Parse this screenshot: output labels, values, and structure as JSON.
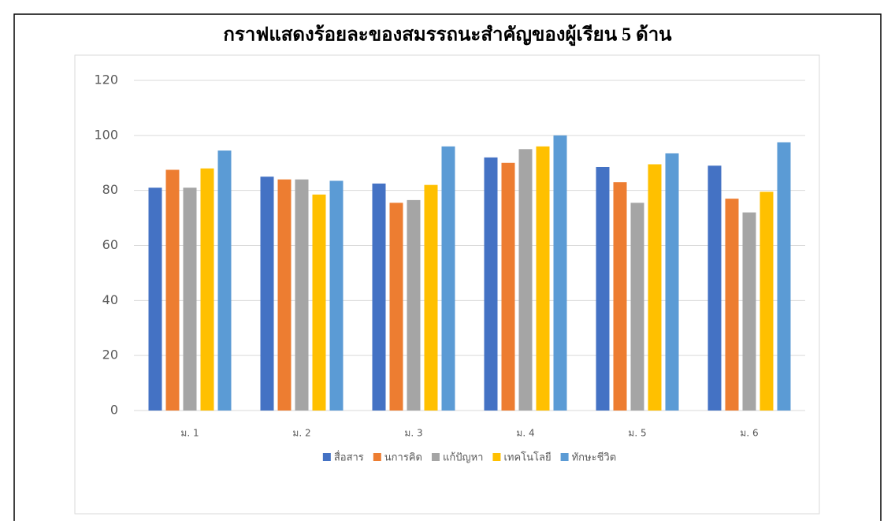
{
  "chart_data": {
    "type": "bar",
    "title": "กราฟแสดงร้อยละของสมรรถนะสำคัญของผู้เรียน 5 ด้าน",
    "categories": [
      "ม. 1",
      "ม. 2",
      "ม. 3",
      "ม. 4",
      "ม. 5",
      "ม. 6"
    ],
    "series": [
      {
        "name": "สื่อสาร",
        "color": "#4472c4",
        "values": [
          81,
          85,
          82.5,
          92,
          88.5,
          89
        ]
      },
      {
        "name": "นการคิด",
        "color": "#ed7d31",
        "values": [
          87.5,
          84,
          75.5,
          90,
          83,
          77
        ]
      },
      {
        "name": "แก้ปัญหา",
        "color": "#a5a5a5",
        "values": [
          81,
          84,
          76.5,
          95,
          75.5,
          72
        ]
      },
      {
        "name": "เทคโนโลยี",
        "color": "#ffc000",
        "values": [
          88,
          78.5,
          82,
          96,
          89.5,
          79.5
        ]
      },
      {
        "name": "ทักษะชีวิต",
        "color": "#5b9bd5",
        "values": [
          94.5,
          83.5,
          96,
          100,
          93.5,
          97.5
        ]
      }
    ],
    "ylim": [
      0,
      120
    ],
    "yticks": [
      0,
      20,
      40,
      60,
      80,
      100,
      120
    ],
    "grid": true,
    "legend": "bottom"
  }
}
